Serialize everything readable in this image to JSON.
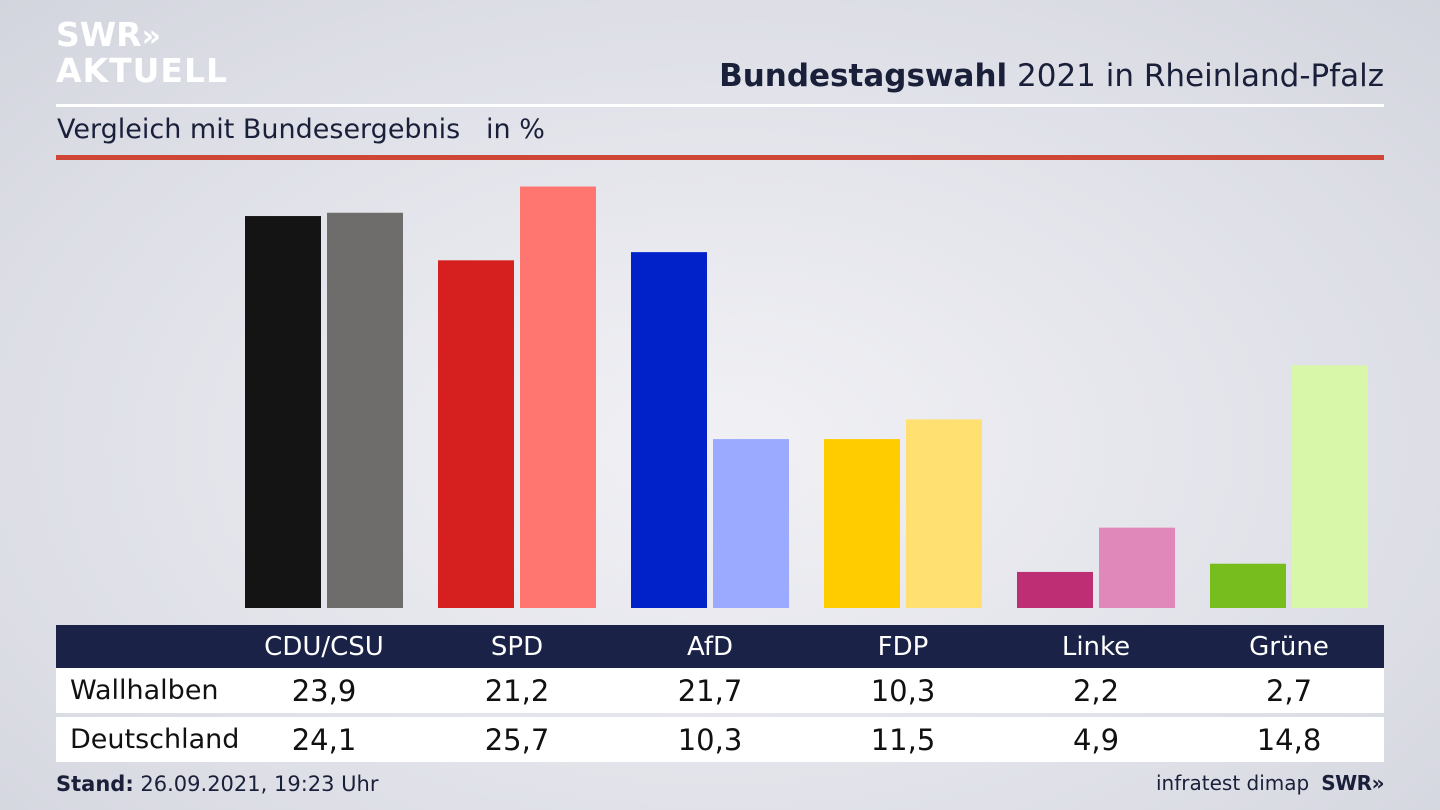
{
  "brand": {
    "line1": "SWR",
    "line1_arrows": "»",
    "line2": "AKTUELL"
  },
  "title_bold": "Bundestagswahl",
  "title_rest": " 2021 in Rheinland-Pfalz",
  "subtitle": "Vergleich mit Bundesergebnis   in %",
  "footer": {
    "stand_label": "Stand:",
    "stand_value": " 26.09.2021, 19:23 Uhr",
    "source": "infratest dimap",
    "logo": "SWR»"
  },
  "colors": {
    "header_bg": "#1a2247",
    "accent_rule": "#cf4636"
  },
  "chart_data": {
    "type": "bar",
    "title": "Bundestagswahl 2021 in Rheinland-Pfalz",
    "subtitle": "Vergleich mit Bundesergebnis   in %",
    "categories": [
      "CDU/CSU",
      "SPD",
      "AfD",
      "FDP",
      "Linke",
      "Grüne"
    ],
    "series": [
      {
        "name": "Wallhalben",
        "values": [
          23.9,
          21.2,
          21.7,
          10.3,
          2.2,
          2.7
        ],
        "labels": [
          "23,9",
          "21,2",
          "21,7",
          "10,3",
          "2,2",
          "2,7"
        ],
        "colors": [
          "#141414",
          "#d61f1f",
          "#0022c8",
          "#ffcc00",
          "#be2e75",
          "#76bd1d"
        ]
      },
      {
        "name": "Deutschland",
        "values": [
          24.1,
          25.7,
          10.3,
          11.5,
          4.9,
          14.8
        ],
        "labels": [
          "24,1",
          "25,7",
          "10,3",
          "11,5",
          "4,9",
          "14,8"
        ],
        "colors": [
          "#6e6d6b",
          "#ff7570",
          "#9ba9ff",
          "#ffe070",
          "#e088b9",
          "#d8f7a8"
        ]
      }
    ],
    "ylim": [
      0,
      26
    ],
    "grid": false,
    "legend": "table-below"
  }
}
